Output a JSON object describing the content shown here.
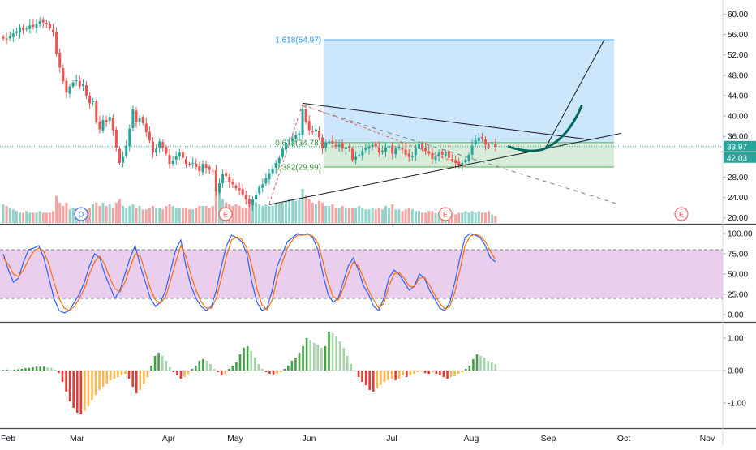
{
  "colors": {
    "up": "#26a69a",
    "down": "#ef5350",
    "vol_up": "#8fd3c9",
    "vol_down": "#f5a3a1",
    "fib_zone": "#bbdefb",
    "fib_green": "#c8e6c9",
    "fib_blue_line": "#42a5f5",
    "fib_label_blue": "#2196f3",
    "fib_label_green": "#388e3c",
    "stoch_band": "#e1bee7",
    "stoch_k": "#2962ff",
    "stoch_d": "#ff6d00",
    "macd_pos_strong": "#43a047",
    "macd_pos_weak": "#a5d6a7",
    "macd_neg_strong": "#e53935",
    "macd_neg_weak": "#ffb74d",
    "price_badge": "#26a69a",
    "curve": "#00695c"
  },
  "chart_data": [
    {
      "type": "candlestick",
      "panel": "price",
      "y_ticks": [
        "60.00",
        "56.00",
        "52.00",
        "48.00",
        "44.00",
        "40.00",
        "36.00",
        "32.00",
        "28.00",
        "24.00",
        "20.00"
      ],
      "ylim": [
        19,
        61.5
      ],
      "x_labels": [
        "Feb",
        "Mar",
        "Apr",
        "May",
        "Jun",
        "Jul",
        "Aug",
        "Sep",
        "Oct",
        "Nov"
      ],
      "last_price": "33.97",
      "countdown": "42:03",
      "fib_labels": [
        {
          "text": "1.618(54.97)",
          "level": 54.97,
          "color": "blue"
        },
        {
          "text": "0.618(34.78)",
          "level": 34.78,
          "color": "green"
        },
        {
          "text": "0.382(29.99)",
          "level": 29.99,
          "color": "green"
        }
      ],
      "event_markers": [
        {
          "label": "D",
          "kind": "dividend",
          "date_index": 24
        },
        {
          "label": "E",
          "kind": "earnings",
          "date_index": 62
        },
        {
          "label": "E",
          "kind": "earnings",
          "date_index": 122
        },
        {
          "label": "E",
          "kind": "earnings",
          "date_index": 187
        }
      ],
      "closes": [
        55.2,
        55.0,
        55.6,
        56.2,
        56.6,
        57.4,
        56.8,
        57.2,
        57.8,
        57.5,
        58.1,
        58.6,
        58.4,
        58.0,
        57.2,
        56.4,
        52.2,
        49.5,
        46.8,
        44.6,
        45.8,
        46.6,
        47.0,
        45.8,
        46.3,
        44.0,
        42.5,
        43.0,
        38.8,
        37.4,
        39.2,
        38.8,
        39.8,
        37.2,
        33.8,
        30.8,
        32.0,
        34.2,
        37.5,
        41.3,
        38.8,
        39.6,
        38.6,
        36.8,
        35.2,
        32.8,
        33.6,
        35.0,
        33.8,
        32.6,
        30.6,
        31.2,
        32.2,
        32.8,
        31.8,
        30.6,
        30.4,
        30.8,
        30.0,
        29.2,
        30.6,
        29.8,
        29.4,
        29.2,
        25.2,
        26.8,
        28.6,
        28.2,
        27.0,
        26.6,
        25.8,
        25.4,
        24.6,
        23.6,
        22.8,
        23.6,
        24.6,
        26.0,
        26.6,
        27.8,
        28.8,
        29.6,
        30.8,
        31.8,
        33.6,
        34.8,
        34.8,
        35.6,
        36.2,
        36.6,
        41.3,
        38.8,
        37.2,
        36.8,
        37.4,
        35.8,
        33.6,
        34.8,
        35.0,
        34.6,
        34.0,
        34.4,
        33.6,
        33.9,
        33.8,
        31.4,
        32.0,
        32.4,
        33.2,
        33.8,
        34.0,
        34.4,
        34.0,
        32.8,
        33.2,
        33.8,
        34.0,
        32.6,
        33.6,
        34.0,
        33.4,
        32.4,
        32.0,
        32.2,
        33.8,
        34.6,
        33.4,
        33.2,
        32.6,
        31.6,
        32.2,
        32.8,
        32.4,
        33.0,
        31.8,
        31.4,
        30.8,
        30.4,
        30.8,
        31.4,
        32.4,
        34.2,
        35.2,
        35.8,
        35.6,
        34.4,
        34.2,
        34.6,
        33.97
      ],
      "volumes": [
        0.55,
        0.5,
        0.45,
        0.4,
        0.35,
        0.3,
        0.3,
        0.35,
        0.3,
        0.3,
        0.3,
        0.35,
        0.3,
        0.3,
        0.3,
        0.35,
        0.8,
        0.6,
        0.5,
        0.6,
        0.4,
        0.45,
        0.4,
        0.35,
        0.35,
        0.4,
        0.45,
        0.55,
        0.6,
        0.5,
        0.6,
        0.5,
        0.55,
        0.45,
        0.6,
        0.7,
        0.5,
        0.45,
        0.5,
        0.55,
        0.45,
        0.5,
        0.4,
        0.4,
        0.45,
        0.5,
        0.45,
        0.45,
        0.4,
        0.5,
        0.55,
        0.5,
        0.45,
        0.45,
        0.45,
        0.45,
        0.4,
        0.4,
        0.45,
        0.5,
        0.5,
        0.5,
        0.45,
        0.5,
        1.0,
        0.9,
        0.7,
        0.6,
        0.55,
        0.5,
        0.55,
        0.5,
        0.45,
        0.45,
        0.7,
        0.6,
        0.6,
        0.55,
        0.5,
        0.55,
        0.5,
        0.5,
        0.6,
        0.55,
        0.6,
        0.65,
        0.7,
        0.7,
        0.65,
        0.7,
        1.0,
        0.8,
        0.7,
        0.6,
        0.55,
        0.65,
        0.6,
        0.5,
        0.5,
        0.55,
        0.45,
        0.45,
        0.5,
        0.45,
        0.45,
        0.45,
        0.45,
        0.5,
        0.45,
        0.4,
        0.4,
        0.45,
        0.4,
        0.45,
        0.4,
        0.5,
        0.45,
        0.55,
        0.4,
        0.4,
        0.35,
        0.4,
        0.45,
        0.4,
        0.35,
        0.35,
        0.3,
        0.3,
        0.35,
        0.35,
        0.3,
        0.3,
        0.3,
        0.35,
        0.3,
        0.3,
        0.25,
        0.3,
        0.3,
        0.35,
        0.3,
        0.35,
        0.3,
        0.35,
        0.3,
        0.3,
        0.35,
        0.25,
        0.2
      ]
    },
    {
      "type": "line",
      "panel": "stochastic",
      "y_ticks": [
        "100.00",
        "75.00",
        "50.00",
        "25.00",
        "0.00"
      ],
      "ylim": [
        -8,
        110
      ],
      "levels": [
        80,
        20
      ],
      "series": [
        {
          "key": "k",
          "values": [
            75,
            55,
            40,
            45,
            65,
            80,
            82,
            85,
            70,
            45,
            20,
            5,
            2,
            5,
            15,
            25,
            40,
            60,
            75,
            70,
            50,
            35,
            20,
            30,
            50,
            70,
            85,
            60,
            40,
            20,
            10,
            15,
            30,
            55,
            80,
            92,
            60,
            35,
            20,
            10,
            5,
            10,
            30,
            60,
            85,
            98,
            95,
            90,
            75,
            40,
            15,
            5,
            8,
            30,
            60,
            75,
            90,
            95,
            100,
            98,
            100,
            95,
            80,
            50,
            25,
            15,
            20,
            40,
            60,
            70,
            55,
            35,
            25,
            10,
            5,
            20,
            45,
            55,
            50,
            40,
            30,
            35,
            50,
            45,
            30,
            20,
            8,
            5,
            15,
            40,
            70,
            95,
            100,
            98,
            95,
            85,
            70,
            65
          ]
        },
        {
          "key": "d",
          "values": [
            70,
            62,
            50,
            47,
            55,
            68,
            78,
            82,
            78,
            62,
            40,
            20,
            8,
            5,
            10,
            20,
            32,
            50,
            65,
            72,
            62,
            45,
            32,
            28,
            40,
            58,
            75,
            72,
            52,
            32,
            18,
            14,
            22,
            42,
            65,
            85,
            72,
            48,
            30,
            16,
            8,
            8,
            20,
            45,
            72,
            92,
            96,
            93,
            82,
            60,
            32,
            12,
            6,
            18,
            45,
            65,
            82,
            92,
            98,
            98,
            99,
            97,
            88,
            65,
            40,
            22,
            18,
            32,
            50,
            65,
            60,
            45,
            30,
            18,
            8,
            14,
            35,
            50,
            52,
            45,
            35,
            34,
            45,
            46,
            36,
            25,
            14,
            7,
            10,
            28,
            55,
            85,
            97,
            99,
            97,
            90,
            78,
            68
          ]
        }
      ]
    },
    {
      "type": "bar",
      "panel": "macd_histogram",
      "y_ticks": [
        "1.00",
        "0.00",
        "-1.00"
      ],
      "ylim": [
        -1.75,
        1.45
      ],
      "values": [
        0.02,
        0.03,
        0.02,
        0.03,
        0.04,
        0.05,
        0.07,
        0.08,
        0.1,
        0.12,
        0.12,
        0.12,
        0.1,
        0.08,
        0.03,
        -0.08,
        -0.35,
        -0.65,
        -0.95,
        -1.15,
        -1.3,
        -1.35,
        -1.25,
        -1.1,
        -0.9,
        -0.75,
        -0.6,
        -0.5,
        -0.4,
        -0.3,
        -0.25,
        -0.2,
        -0.15,
        -0.1,
        -0.25,
        -0.5,
        -0.7,
        -0.6,
        -0.4,
        -0.2,
        0.15,
        0.45,
        0.55,
        0.45,
        0.3,
        0.1,
        -0.05,
        -0.15,
        -0.25,
        -0.2,
        -0.1,
        0.05,
        0.15,
        0.3,
        0.35,
        0.3,
        0.2,
        0.05,
        -0.05,
        -0.15,
        -0.1,
        0.05,
        0.15,
        0.25,
        0.5,
        0.7,
        0.75,
        0.6,
        0.4,
        0.2,
        0.05,
        -0.05,
        -0.1,
        -0.12,
        -0.1,
        -0.05,
        0.05,
        0.15,
        0.3,
        0.4,
        0.55,
        0.75,
        1.0,
        0.95,
        0.85,
        0.8,
        0.7,
        0.75,
        1.2,
        1.15,
        1.05,
        0.9,
        0.7,
        0.45,
        0.2,
        0.0,
        -0.2,
        -0.35,
        -0.45,
        -0.6,
        -0.65,
        -0.55,
        -0.45,
        -0.35,
        -0.3,
        -0.25,
        -0.3,
        -0.25,
        -0.15,
        -0.2,
        -0.15,
        -0.1,
        -0.05,
        -0.02,
        -0.08,
        -0.1,
        -0.05,
        -0.1,
        -0.15,
        -0.2,
        -0.25,
        -0.2,
        -0.18,
        -0.1,
        -0.05,
        0.05,
        0.15,
        0.35,
        0.5,
        0.45,
        0.4,
        0.3,
        0.25,
        0.2
      ]
    }
  ],
  "x_axis": {
    "labels": [
      "Feb",
      "Mar",
      "Apr",
      "May",
      "Jun",
      "Jul",
      "Aug",
      "Sep",
      "Oct",
      "Nov"
    ]
  }
}
